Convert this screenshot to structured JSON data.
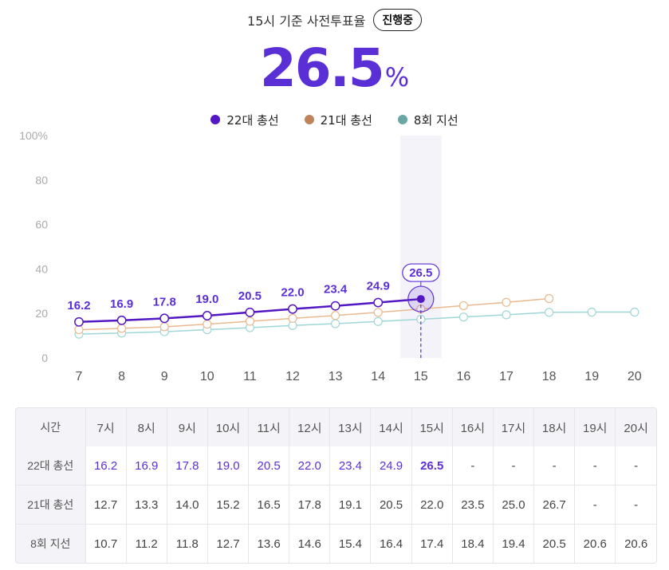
{
  "header": {
    "caption": "15시 기준 사전투표율",
    "status_badge": "진행중",
    "rate_value": "26.5",
    "rate_unit": "%"
  },
  "colors": {
    "accent": "#5b2fd6",
    "series_22": "#5417c4",
    "series_21": "#e9b98f",
    "series_8": "#9fd6d6",
    "legend_21": "#c0845a",
    "legend_8": "#6aa6a3",
    "highlight_band": "#f3f3f9"
  },
  "chart_data": {
    "type": "line",
    "x": [
      7,
      8,
      9,
      10,
      11,
      12,
      13,
      14,
      15,
      16,
      17,
      18,
      19,
      20
    ],
    "x_tick_labels": [
      "7",
      "8",
      "9",
      "10",
      "11",
      "12",
      "13",
      "14",
      "15",
      "16",
      "17",
      "18",
      "19",
      "20"
    ],
    "y_ticks": [
      "0",
      "20",
      "40",
      "60",
      "80",
      "100%"
    ],
    "ylim": [
      0,
      100
    ],
    "highlight_x": 15,
    "grid": false,
    "legend_position": "top-center",
    "series": [
      {
        "name": "22대 총선",
        "values": [
          16.2,
          16.9,
          17.8,
          19.0,
          20.5,
          22.0,
          23.4,
          24.9,
          26.5,
          null,
          null,
          null,
          null,
          null
        ],
        "labels_shown": true
      },
      {
        "name": "21대 총선",
        "values": [
          12.7,
          13.3,
          14.0,
          15.2,
          16.5,
          17.8,
          19.1,
          20.5,
          22.0,
          23.5,
          25.0,
          26.7,
          null,
          null
        ],
        "labels_shown": false
      },
      {
        "name": "8회 지선",
        "values": [
          10.7,
          11.2,
          11.8,
          12.7,
          13.6,
          14.6,
          15.4,
          16.4,
          17.4,
          18.4,
          19.4,
          20.5,
          20.6,
          20.6
        ],
        "labels_shown": false
      }
    ]
  },
  "table": {
    "corner": "시간",
    "columns": [
      "7시",
      "8시",
      "9시",
      "10시",
      "11시",
      "12시",
      "13시",
      "14시",
      "15시",
      "16시",
      "17시",
      "18시",
      "19시",
      "20시"
    ],
    "rows": [
      {
        "label": "22대 총선",
        "values": [
          "16.2",
          "16.9",
          "17.8",
          "19.0",
          "20.5",
          "22.0",
          "23.4",
          "24.9",
          "26.5",
          "-",
          "-",
          "-",
          "-",
          "-"
        ]
      },
      {
        "label": "21대 총선",
        "values": [
          "12.7",
          "13.3",
          "14.0",
          "15.2",
          "16.5",
          "17.8",
          "19.1",
          "20.5",
          "22.0",
          "23.5",
          "25.0",
          "26.7",
          "-",
          "-"
        ]
      },
      {
        "label": "8회 지선",
        "values": [
          "10.7",
          "11.2",
          "11.8",
          "12.7",
          "13.6",
          "14.6",
          "15.4",
          "16.4",
          "17.4",
          "18.4",
          "19.4",
          "20.5",
          "20.6",
          "20.6"
        ]
      }
    ]
  }
}
